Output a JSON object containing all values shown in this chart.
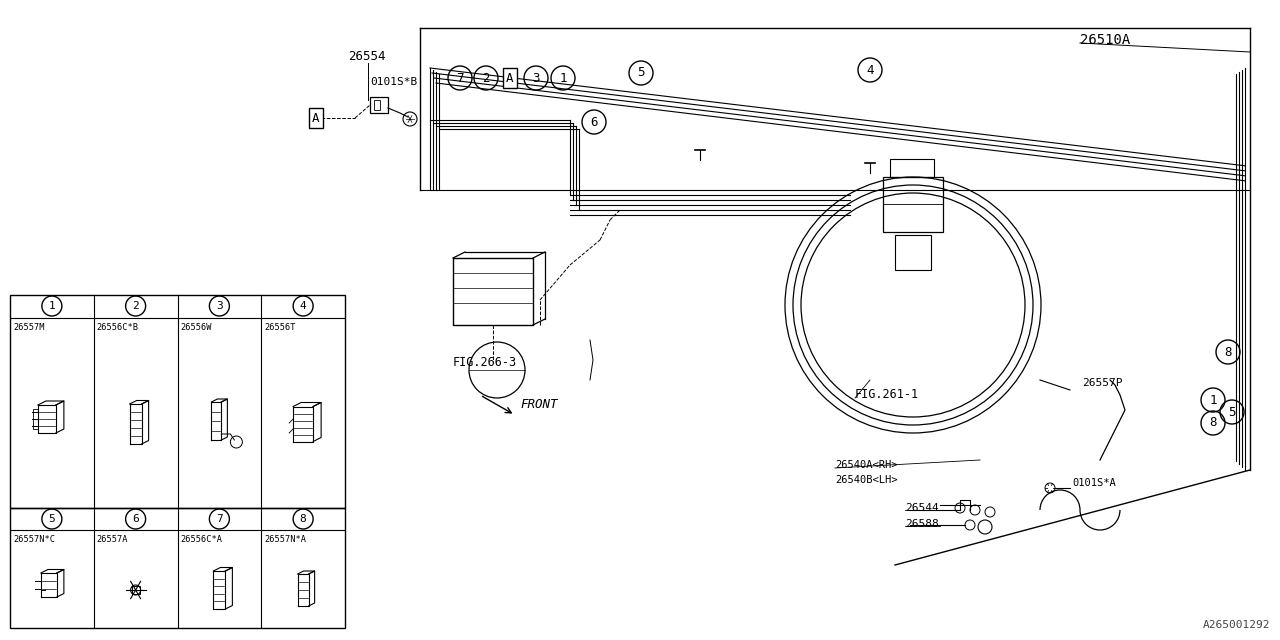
{
  "bg_color": "#ffffff",
  "line_color": "#000000",
  "watermark": "A265001292",
  "part_26554": "26554",
  "bolt_label_b": "0101S*B",
  "bolt_label_a": "0101S*A",
  "part_26510A": "26510A",
  "part_26557P": "26557P",
  "part_26540rh": "26540A<RH>",
  "part_26540lh": "26540B<LH>",
  "part_26544": "26544",
  "part_26588": "26588",
  "fig_266": "FIG.266-3",
  "fig_261": "FIG.261-1",
  "label_FRONT": "FRONT",
  "table_nums_row1": [
    "1",
    "2",
    "3",
    "4"
  ],
  "table_parts_row1": [
    "26557M",
    "26556C*B",
    "26556W",
    "26556T"
  ],
  "table_nums_row2": [
    "5",
    "6",
    "7",
    "8"
  ],
  "table_parts_row2": [
    "26557N*C",
    "26557A",
    "26556C*A",
    "26557N*A"
  ]
}
